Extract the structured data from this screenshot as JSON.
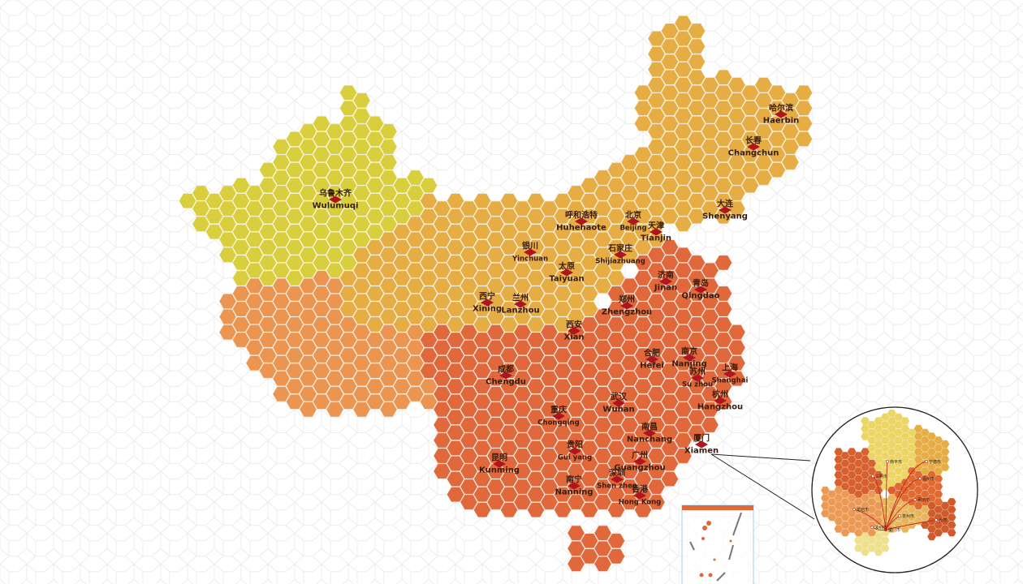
{
  "map": {
    "region_colors": {
      "northwest": "#d9cf3e",
      "north": "#e6ad45",
      "west": "#eb9550",
      "southeast": "#e0683a",
      "marker": "#b0141e",
      "grid": "#e4e4e4"
    },
    "cities": [
      {
        "cn": "乌鲁木齐",
        "en": "Wulumuqi"
      },
      {
        "cn": "哈尔滨",
        "en": "Haerbin"
      },
      {
        "cn": "长春",
        "en": "Changchun"
      },
      {
        "cn": "大连",
        "en": "Shenyang"
      },
      {
        "cn": "呼和浩特",
        "en": "Huhehaote"
      },
      {
        "cn": "北京",
        "en": "Beijing"
      },
      {
        "cn": "天津",
        "en": "Tianjin"
      },
      {
        "cn": "银川",
        "en": "Yinchuan"
      },
      {
        "cn": "石家庄",
        "en": "Shijiazhuang"
      },
      {
        "cn": "太原",
        "en": "Taiyuan"
      },
      {
        "cn": "济南",
        "en": "Jinan"
      },
      {
        "cn": "青岛",
        "en": "Qingdao"
      },
      {
        "cn": "西宁",
        "en": "Xining"
      },
      {
        "cn": "兰州",
        "en": "Lanzhou"
      },
      {
        "cn": "郑州",
        "en": "Zhengzhou"
      },
      {
        "cn": "西安",
        "en": "Xian"
      },
      {
        "cn": "合肥",
        "en": "Hefei"
      },
      {
        "cn": "南京",
        "en": "Nanjing"
      },
      {
        "cn": "苏州",
        "en": "Su zhou"
      },
      {
        "cn": "上海",
        "en": "Shanghai"
      },
      {
        "cn": "成都",
        "en": "Chengdu"
      },
      {
        "cn": "杭州",
        "en": "Hangzhou"
      },
      {
        "cn": "武汉",
        "en": "Wuhan"
      },
      {
        "cn": "重庆",
        "en": "Chongqing"
      },
      {
        "cn": "南昌",
        "en": "Nanchang"
      },
      {
        "cn": "厦门",
        "en": "Xiamen"
      },
      {
        "cn": "贵阳",
        "en": "Gui yang"
      },
      {
        "cn": "广州",
        "en": "Guangzhou"
      },
      {
        "cn": "昆明",
        "en": "Kunming"
      },
      {
        "cn": "深圳",
        "en": "Shen zhen"
      },
      {
        "cn": "南宁",
        "en": "Nanning"
      },
      {
        "cn": "香港",
        "en": "Hong Kong"
      }
    ]
  },
  "inset": {
    "hub": "厦门市",
    "cities": [
      "南平市",
      "宁德市",
      "三明市",
      "福州市",
      "莆田市",
      "龙岩市",
      "泉州市",
      "漳州市",
      "台湾"
    ]
  }
}
